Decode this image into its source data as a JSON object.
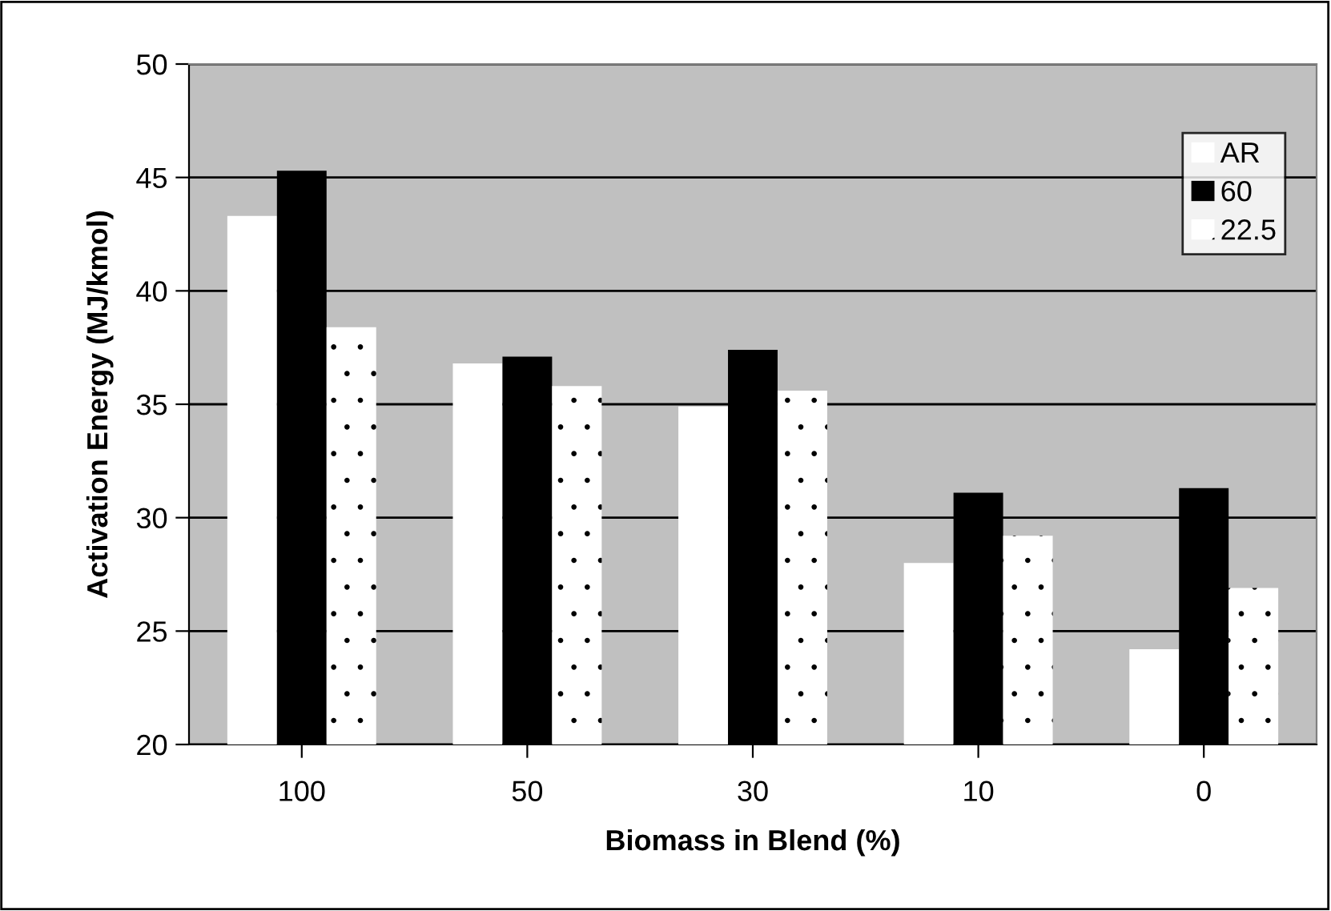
{
  "chart_data": {
    "type": "bar",
    "xlabel": "Biomass in Blend (%)",
    "ylabel": "Activation Energy (MJ/kmol)",
    "categories": [
      "100",
      "50",
      "30",
      "10",
      "0"
    ],
    "series": [
      {
        "name": "AR",
        "color": "#ffffff",
        "values": [
          43.3,
          36.8,
          34.9,
          28.0,
          24.2
        ]
      },
      {
        "name": "60",
        "color": "#000000",
        "values": [
          45.3,
          37.1,
          37.4,
          31.1,
          31.3
        ]
      },
      {
        "name": "22.5",
        "color": "#ffffff",
        "values": [
          38.4,
          35.8,
          35.6,
          29.2,
          26.9
        ]
      }
    ],
    "ylim": [
      20,
      50
    ],
    "yticks": [
      20,
      25,
      30,
      35,
      40,
      45,
      50
    ],
    "grid": "y",
    "legend": "top right"
  }
}
